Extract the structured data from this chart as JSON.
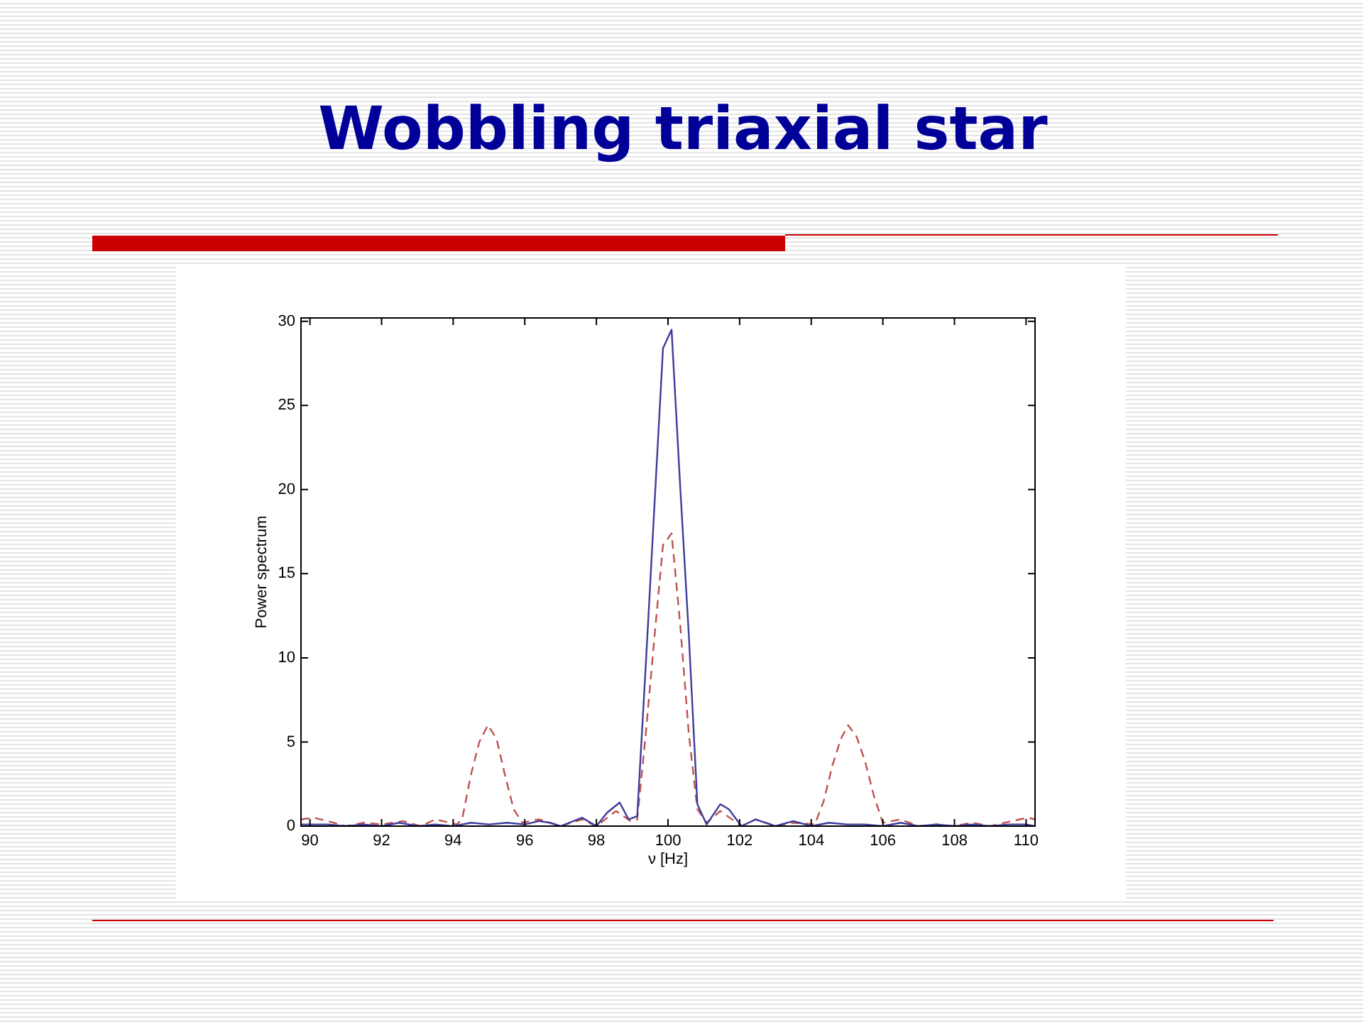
{
  "chart_data": {
    "type": "line",
    "title": "Wobbling triaxial star",
    "xlabel": "ν [Hz]",
    "ylabel": "Power spectrum",
    "xlim": [
      89.75,
      110.25
    ],
    "ylim": [
      0,
      30.2
    ],
    "xticks": [
      90,
      92,
      94,
      96,
      98,
      100,
      102,
      104,
      106,
      108,
      110
    ],
    "yticks": [
      0,
      5,
      10,
      15,
      20,
      25,
      30
    ],
    "series": [
      {
        "color": "#3c3c9c",
        "line_style": "solid",
        "x": [
          89.75,
          90.5,
          91,
          91.5,
          92,
          92.5,
          93,
          93.5,
          94,
          94.5,
          95,
          95.5,
          96,
          96.4,
          96.7,
          97,
          97.6,
          98,
          98.3,
          98.65,
          98.9,
          99.14,
          99.38,
          99.62,
          99.86,
          100.1,
          100.34,
          100.58,
          100.82,
          101.08,
          101.46,
          101.7,
          102.05,
          102.45,
          103,
          103.5,
          104,
          104.5,
          105,
          105.5,
          106,
          106.5,
          107,
          107.5,
          108,
          108.5,
          109,
          109.5,
          110,
          110.25
        ],
        "values": [
          0.1,
          0.1,
          0,
          0.1,
          0,
          0.2,
          0,
          0.1,
          0,
          0.2,
          0.1,
          0.2,
          0.1,
          0.3,
          0.2,
          0,
          0.5,
          0,
          0.8,
          1.4,
          0.4,
          0.6,
          9.6,
          19,
          28.4,
          29.5,
          20.2,
          11.4,
          1.3,
          0.1,
          1.3,
          1.0,
          0,
          0.4,
          0,
          0.3,
          0,
          0.2,
          0.1,
          0.1,
          0,
          0.2,
          0,
          0.1,
          0,
          0.1,
          0,
          0.1,
          0.1,
          0
        ]
      },
      {
        "color": "#c0504d",
        "line_style": "dashed",
        "x": [
          89.75,
          90.1,
          90.5,
          91,
          91.5,
          92,
          92.6,
          93.1,
          93.5,
          94.1,
          94.25,
          94.49,
          94.73,
          94.97,
          95.21,
          95.45,
          95.69,
          95.93,
          96.4,
          97,
          97.6,
          98,
          98.55,
          98.95,
          99.14,
          99.38,
          99.62,
          99.86,
          100.1,
          100.34,
          100.58,
          100.82,
          101.08,
          101.46,
          102.05,
          102.45,
          103,
          103.5,
          104.1,
          104.35,
          104.59,
          104.83,
          105.03,
          105.27,
          105.51,
          105.75,
          106,
          106.5,
          107,
          107.5,
          108,
          108.5,
          109,
          109.6,
          110.05,
          110.25
        ],
        "values": [
          0.4,
          0.5,
          0.3,
          0,
          0.2,
          0.1,
          0.3,
          0,
          0.4,
          0.1,
          0.4,
          3,
          5,
          6,
          5.2,
          3,
          1,
          0.2,
          0.4,
          0,
          0.4,
          0,
          0.9,
          0.3,
          0.4,
          5.5,
          11.2,
          16.7,
          17.4,
          12,
          5.5,
          1,
          0.2,
          0.9,
          0,
          0.4,
          0,
          0.2,
          0.1,
          1.5,
          3.6,
          5.2,
          6,
          5.3,
          3.8,
          1.8,
          0.2,
          0.4,
          0,
          0.1,
          0,
          0.2,
          0,
          0.3,
          0.5,
          0.4
        ]
      }
    ]
  }
}
